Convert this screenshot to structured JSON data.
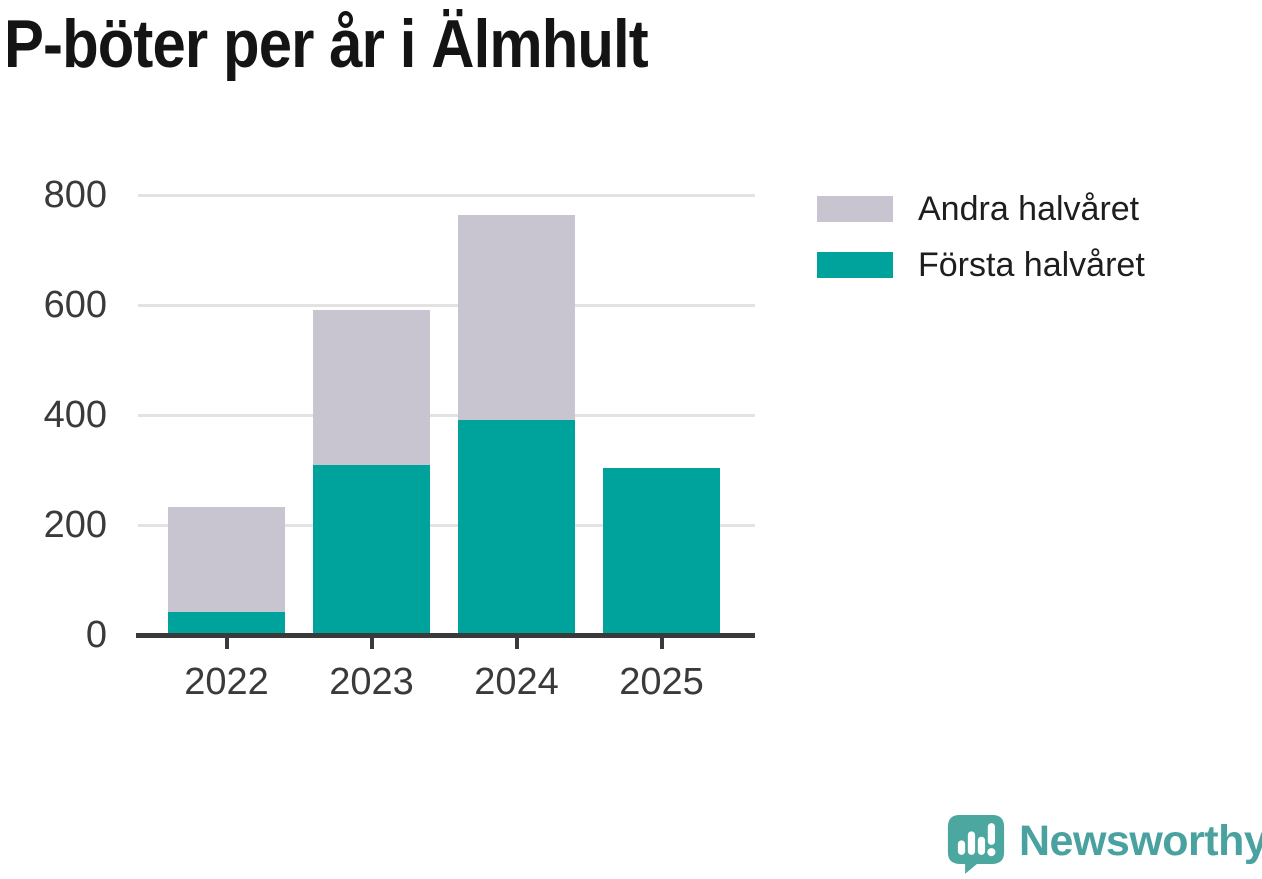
{
  "title": "P-böter per år i Älmhult",
  "chart_data": {
    "type": "bar",
    "stacked": true,
    "title": "P-böter per år i Älmhult",
    "categories": [
      "2022",
      "2023",
      "2024",
      "2025"
    ],
    "series": [
      {
        "name": "Första halvåret",
        "color": "#00a39b",
        "values": [
          42,
          310,
          391,
          303
        ]
      },
      {
        "name": "Andra halvåret",
        "color": "#c8c5d0",
        "values": [
          191,
          281,
          373,
          0
        ]
      }
    ],
    "totals": [
      233,
      591,
      764,
      303
    ],
    "xlabel": "",
    "ylabel": "",
    "ylim": [
      0,
      800
    ],
    "yticks": [
      0,
      200,
      400,
      600,
      800
    ],
    "grid": true,
    "legend_position": "top-right"
  },
  "legend_items": [
    {
      "label": "Andra halvåret",
      "color": "#c8c5d0"
    },
    {
      "label": "Första halvåret",
      "color": "#00a39b"
    }
  ],
  "branding": {
    "logo_text": "Newsworthy",
    "logo_icon": "newsworthy-speech-bubble-chart-icon"
  },
  "colors": {
    "first_half": "#00a39b",
    "second_half": "#c8c5d0",
    "grid": "#e3e3e3",
    "axis": "#3a3a3a",
    "tick_text": "#3a3a3a",
    "legend_text": "#1e1e1e",
    "title_text": "#141414",
    "logo": "#4aa2a0",
    "logo_icon_fill": "#4ba79f",
    "background": "#ffffff"
  }
}
